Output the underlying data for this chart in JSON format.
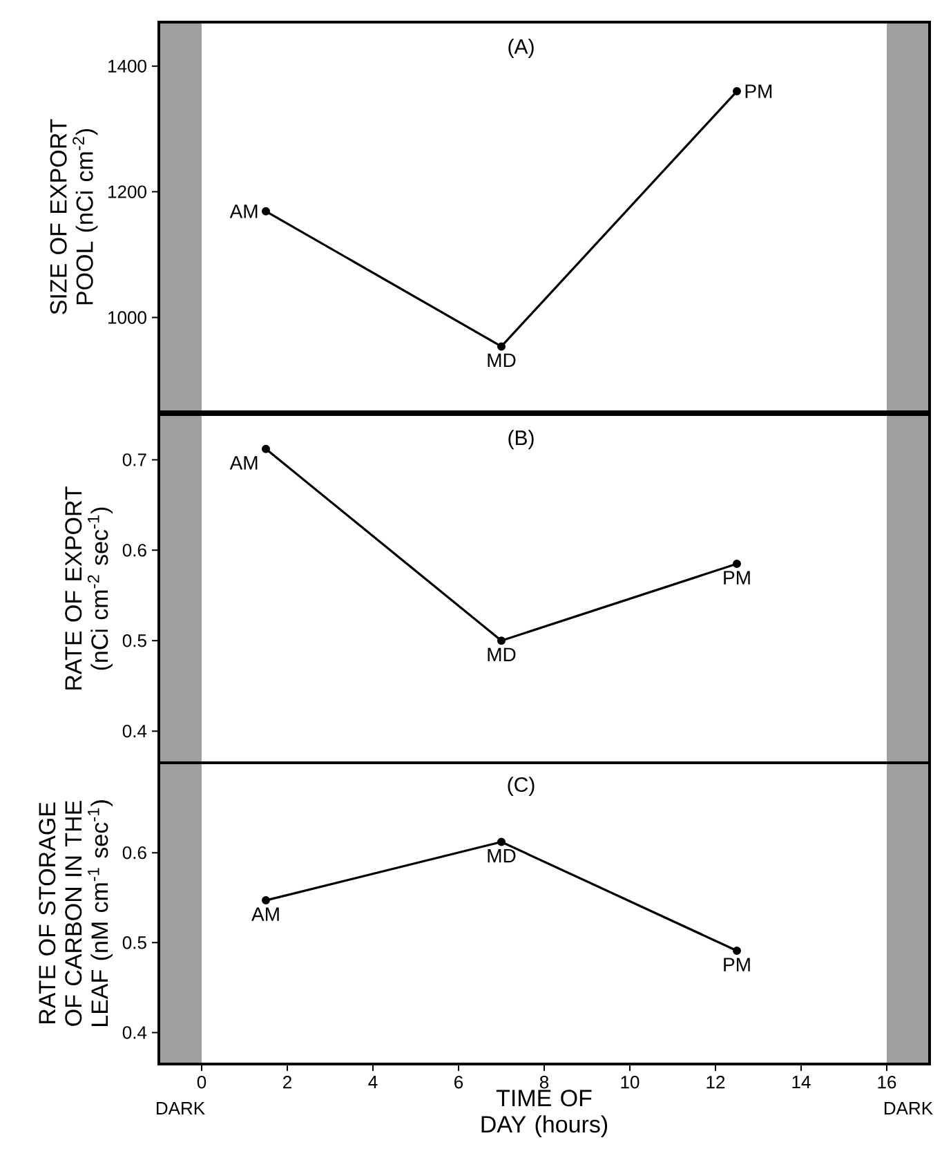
{
  "chart_data": [
    {
      "type": "line",
      "ylabel": "SIZE OF EXPORT POOL (nCi cm$^{-2}$)",
      "xlim": [
        -1,
        17
      ],
      "ylim": [
        850,
        1470
      ],
      "yticks": [
        1000,
        1200,
        1400
      ],
      "tick_labels": "y",
      "x": [
        1.5,
        7,
        12.5
      ],
      "values": [
        1169,
        954,
        1360
      ],
      "color": "#000000",
      "marker": "circle",
      "line_style": "solid",
      "bands": [
        {
          "axis": "x",
          "from": -1,
          "to": 0,
          "color": "#a0a0a0"
        },
        {
          "axis": "x",
          "from": 16,
          "to": 17,
          "color": "#a0a0a0"
        }
      ],
      "annotations": [
        "(A)",
        {
          "text": "AM",
          "x": 1.5,
          "y": 1169
        },
        {
          "text": "MD",
          "x": 7,
          "y": 954
        },
        {
          "text": "PM",
          "x": 12.5,
          "y": 1360
        }
      ]
    },
    {
      "type": "line",
      "ylabel": "RATE OF EXPORT (nCi cm$^{-2}$ sec$^{-1}$)",
      "xlim": [
        -1,
        17
      ],
      "ylim": [
        0.365,
        0.75
      ],
      "yticks": [
        0.4,
        0.5,
        0.6,
        0.7
      ],
      "tick_labels": "y",
      "x": [
        1.5,
        7,
        12.5
      ],
      "values": [
        0.712,
        0.5,
        0.585
      ],
      "color": "#000000",
      "marker": "circle",
      "line_style": "solid",
      "bands": [
        {
          "axis": "x",
          "from": -1,
          "to": 0,
          "color": "#a0a0a0"
        },
        {
          "axis": "x",
          "from": 16,
          "to": 17,
          "color": "#a0a0a0"
        }
      ],
      "annotations": [
        "(B)",
        {
          "text": "AM",
          "x": 1.5,
          "y": 0.712
        },
        {
          "text": "MD",
          "x": 7,
          "y": 0.5
        },
        {
          "text": "PM",
          "x": 12.5,
          "y": 0.585
        }
      ]
    },
    {
      "type": "line",
      "ylabel": "RATE OF STORAGE OF CARBON IN THE LEAF (nM cm$^{-1}$ sec$^{-1}$)",
      "xlabel": "TIME OF DAY (hours)",
      "xlim": [
        -1,
        17
      ],
      "ylim": [
        0.365,
        0.7
      ],
      "xticks": [
        0,
        2,
        4,
        6,
        8,
        10,
        12,
        14,
        16
      ],
      "yticks": [
        0.4,
        0.5,
        0.6
      ],
      "x": [
        1.5,
        7,
        12.5
      ],
      "values": [
        0.547,
        0.612,
        0.491
      ],
      "color": "#000000",
      "marker": "circle",
      "line_style": "solid",
      "bands": [
        {
          "axis": "x",
          "from": -1,
          "to": 0,
          "color": "#a0a0a0",
          "label": "DARK"
        },
        {
          "axis": "x",
          "from": 16,
          "to": 17,
          "color": "#a0a0a0",
          "label": "DARK"
        }
      ],
      "annotations": [
        "(C)",
        {
          "text": "AM",
          "x": 1.5,
          "y": 0.547
        },
        {
          "text": "MD",
          "x": 7,
          "y": 0.612
        },
        {
          "text": "PM",
          "x": 12.5,
          "y": 0.491
        }
      ]
    }
  ]
}
